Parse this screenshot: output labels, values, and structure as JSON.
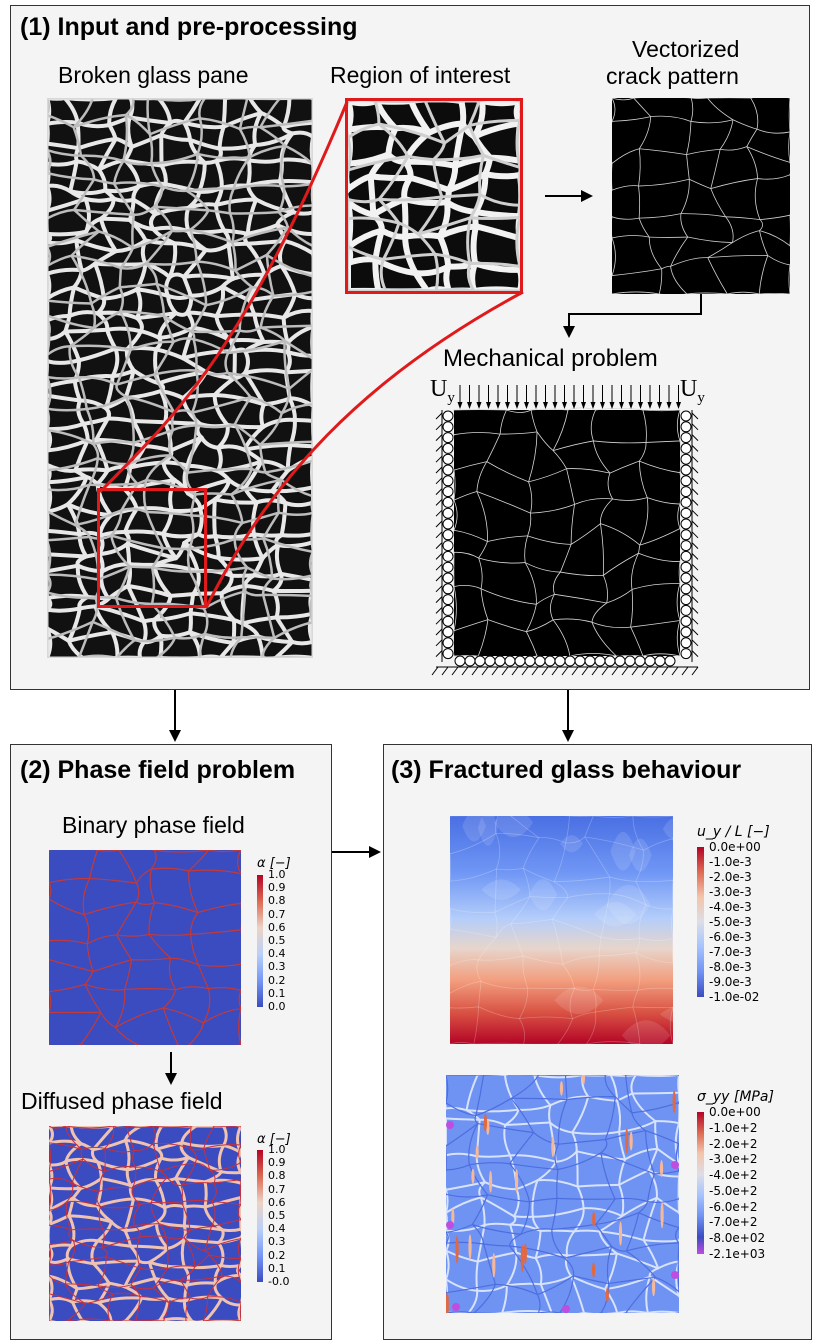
{
  "panel1": {
    "title": "(1) Input and pre-processing",
    "broken_label": "Broken glass pane",
    "roi_label": "Region of interest",
    "vector_label_line1": "Vectorized",
    "vector_label_line2": "crack pattern",
    "mech_label": "Mechanical problem",
    "uy_left": "U",
    "uy_left_sub": "y",
    "uy_right": "U",
    "uy_right_sub": "y"
  },
  "panel2": {
    "title": "(2) Phase field problem",
    "binary_label": "Binary phase field",
    "diffused_label": "Diffused phase field",
    "cbar1_title": "α [−]",
    "cbar1_ticks": [
      "1.0",
      "0.9",
      "0.8",
      "0.7",
      "0.6",
      "0.5",
      "0.4",
      "0.3",
      "0.2",
      "0.1",
      "0.0"
    ],
    "cbar2_title": "α [−]",
    "cbar2_ticks": [
      "1.0",
      "0.9",
      "0.8",
      "0.7",
      "0.6",
      "0.5",
      "0.4",
      "0.3",
      "0.2",
      "0.1",
      "-0.0"
    ]
  },
  "panel3": {
    "title": "(3) Fractured glass behaviour",
    "cbar1_title": "u_y / L [−]",
    "cbar1_ticks": [
      "0.0e+00",
      "-1.0e-3",
      "-2.0e-3",
      "-3.0e-3",
      "-4.0e-3",
      "-5.0e-3",
      "-6.0e-3",
      "-7.0e-3",
      "-8.0e-3",
      "-9.0e-3",
      "-1.0e-02"
    ],
    "cbar2_title": "σ_yy [MPa]",
    "cbar2_ticks": [
      "0.0e+00",
      "-1.0e+2",
      "-2.0e+2",
      "-3.0e+2",
      "-4.0e+2",
      "-5.0e+2",
      "-6.0e+2",
      "-7.0e+2",
      "-8.0e+02",
      "-2.1e+03"
    ]
  },
  "colors": {
    "panel_bg": "#f4f4f4",
    "roi_red": "#e0191b",
    "field_blue": "#3b4cc0",
    "field_red": "#b40426",
    "stress_purple": "#c04ce0"
  }
}
